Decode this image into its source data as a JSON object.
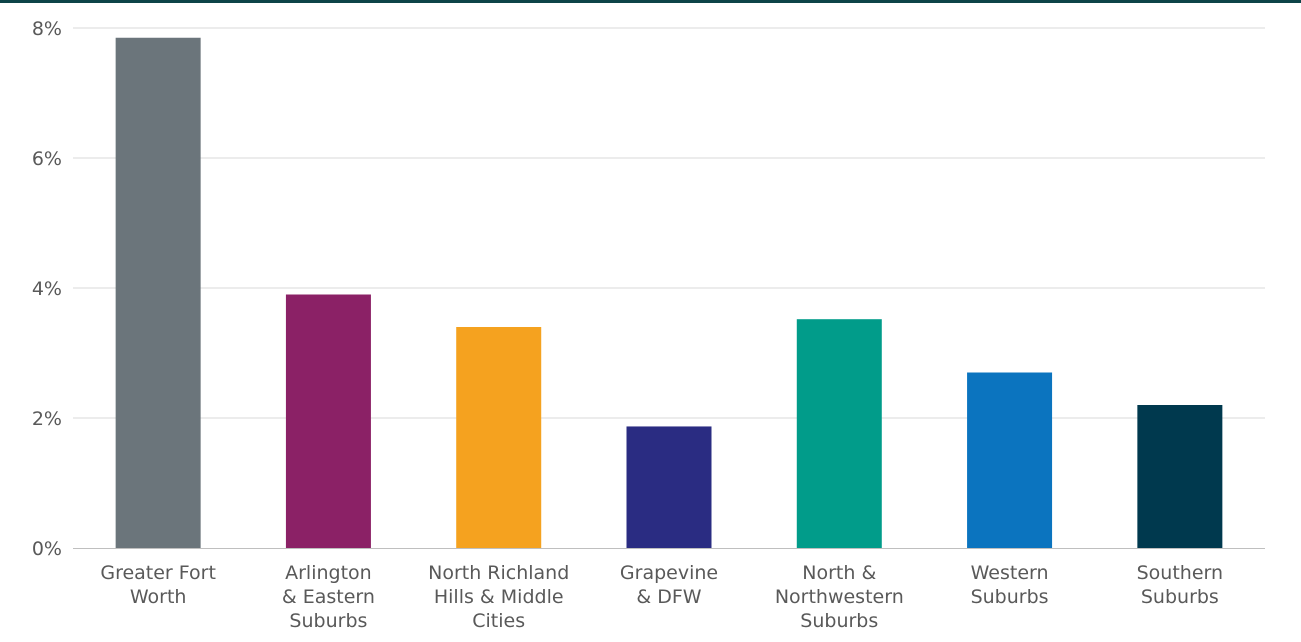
{
  "chart_data": {
    "type": "bar",
    "categories": [
      "Greater Fort Worth",
      "Arlington & Eastern Suburbs",
      "North Richland Hills & Middle Cities",
      "Grapevine & DFW",
      "North & Northwestern Suburbs",
      "Western Suburbs",
      "Southern Suburbs"
    ],
    "category_label_lines": [
      [
        "Greater Fort",
        "Worth"
      ],
      [
        "Arlington",
        "& Eastern",
        "Suburbs"
      ],
      [
        "North Richland",
        "Hills & Middle",
        "Cities"
      ],
      [
        "Grapevine",
        "& DFW"
      ],
      [
        "North &",
        "Northwestern",
        "Suburbs"
      ],
      [
        "Western",
        "Suburbs"
      ],
      [
        "Southern",
        "Suburbs"
      ]
    ],
    "values": [
      7.85,
      3.9,
      3.4,
      1.87,
      3.52,
      2.7,
      2.2
    ],
    "colors": [
      "#6b757b",
      "#8b2166",
      "#f5a21f",
      "#2a2c82",
      "#019c8a",
      "#0b74bf",
      "#00394e"
    ],
    "y_ticks": [
      0,
      2,
      4,
      6,
      8
    ],
    "y_tick_labels": [
      "0%",
      "2%",
      "4%",
      "6%",
      "8%"
    ],
    "ylim": [
      0,
      8
    ],
    "unit": "%",
    "grid": true,
    "legend": "none"
  }
}
